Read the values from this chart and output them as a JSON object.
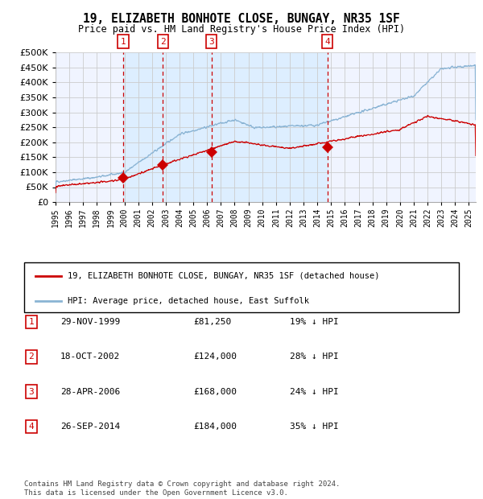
{
  "title": "19, ELIZABETH BONHOTE CLOSE, BUNGAY, NR35 1SF",
  "subtitle": "Price paid vs. HM Land Registry's House Price Index (HPI)",
  "footer": "Contains HM Land Registry data © Crown copyright and database right 2024.\nThis data is licensed under the Open Government Licence v3.0.",
  "legend_red": "19, ELIZABETH BONHOTE CLOSE, BUNGAY, NR35 1SF (detached house)",
  "legend_blue": "HPI: Average price, detached house, East Suffolk",
  "transactions": [
    {
      "num": 1,
      "date": "29-NOV-1999",
      "price": 81250,
      "pct": "19% ↓ HPI",
      "year": 1999.91
    },
    {
      "num": 2,
      "date": "18-OCT-2002",
      "price": 124000,
      "pct": "28% ↓ HPI",
      "year": 2002.79
    },
    {
      "num": 3,
      "date": "28-APR-2006",
      "price": 168000,
      "pct": "24% ↓ HPI",
      "year": 2006.32
    },
    {
      "num": 4,
      "date": "26-SEP-2014",
      "price": 184000,
      "pct": "35% ↓ HPI",
      "year": 2014.73
    }
  ],
  "hpi_color": "#8ab4d4",
  "price_color": "#cc0000",
  "shade_color": "#ddeeff",
  "grid_color": "#cccccc",
  "dashed_color": "#cc0000",
  "background_chart": "#f0f4ff",
  "ylim": [
    0,
    500000
  ],
  "yticks": [
    0,
    50000,
    100000,
    150000,
    200000,
    250000,
    300000,
    350000,
    400000,
    450000,
    500000
  ],
  "xlim_start": 1995.0,
  "xlim_end": 2025.5,
  "xticks": [
    1995,
    1996,
    1997,
    1998,
    1999,
    2000,
    2001,
    2002,
    2003,
    2004,
    2005,
    2006,
    2007,
    2008,
    2009,
    2010,
    2011,
    2012,
    2013,
    2014,
    2015,
    2016,
    2017,
    2018,
    2019,
    2020,
    2021,
    2022,
    2023,
    2024,
    2025
  ]
}
